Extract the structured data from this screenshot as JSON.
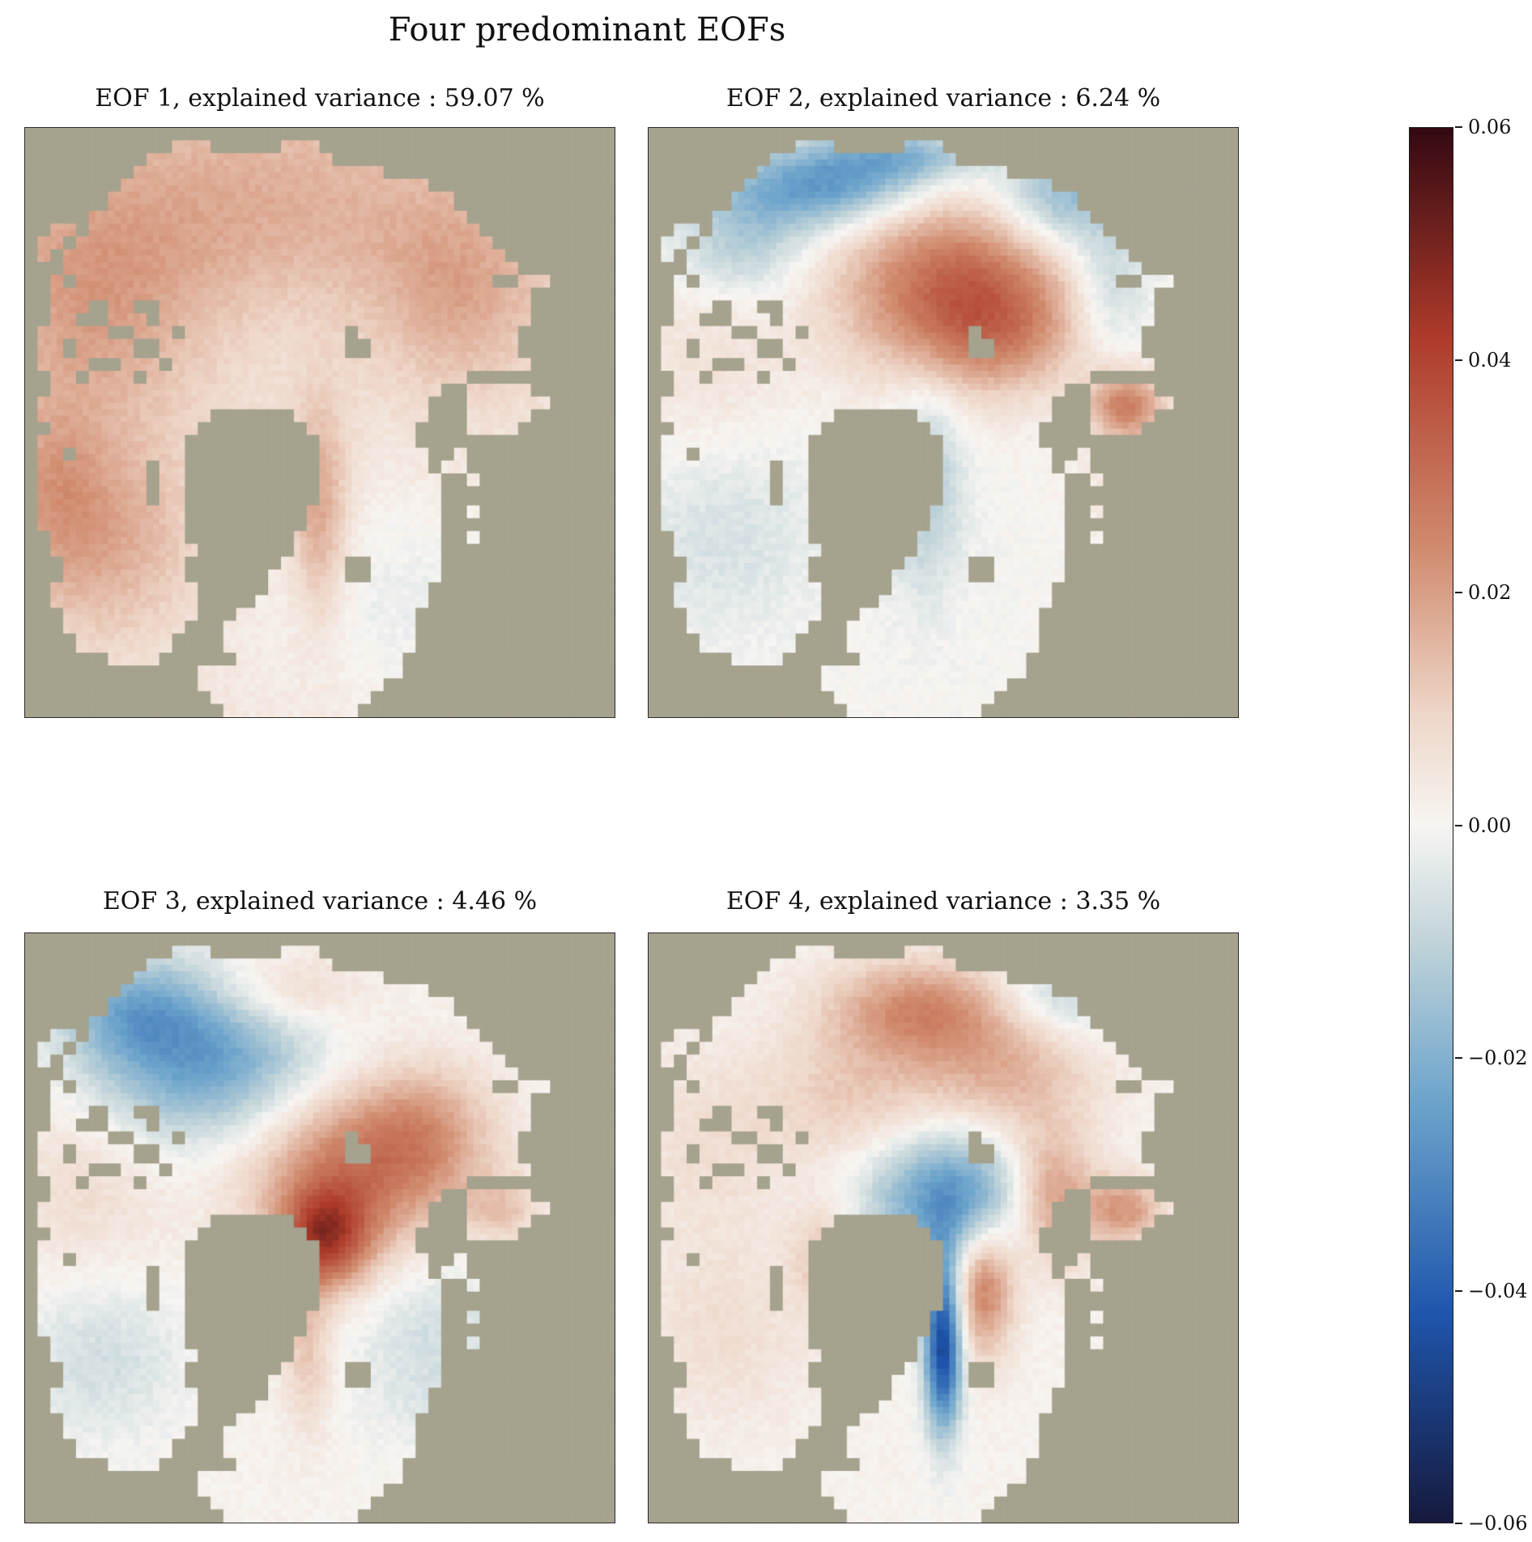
{
  "figure": {
    "title": "Four predominant EOFs",
    "background": "#ffffff",
    "text_color": "#111111",
    "land_color": "#a5a28e"
  },
  "colorbar": {
    "vmin": -0.06,
    "vmax": 0.06,
    "ticks": [
      {
        "value": 0.06,
        "label": "0.06"
      },
      {
        "value": 0.04,
        "label": "0.04"
      },
      {
        "value": 0.02,
        "label": "0.02"
      },
      {
        "value": 0.0,
        "label": "0.00"
      },
      {
        "value": -0.02,
        "label": "−0.02"
      },
      {
        "value": -0.04,
        "label": "−0.04"
      },
      {
        "value": -0.06,
        "label": "−0.06"
      }
    ]
  },
  "chart_data": {
    "type": "heatmap",
    "subtype": "geographic-eof-spatial-patterns",
    "projection": "arctic-polar",
    "title": "Four predominant EOFs",
    "value_range": [
      -0.06,
      0.06
    ],
    "colormap": "diverging dark-navy / blue / white / red / dark-maroon (balance-like)",
    "colormap_stops": [
      [
        0.0,
        "#161a3e"
      ],
      [
        0.15,
        "#1f56ad"
      ],
      [
        0.3,
        "#6ba3cb"
      ],
      [
        0.42,
        "#c3d5da"
      ],
      [
        0.5,
        "#f7f5f2"
      ],
      [
        0.58,
        "#eed6c8"
      ],
      [
        0.7,
        "#d08a6d"
      ],
      [
        0.85,
        "#ae3b2a"
      ],
      [
        1.0,
        "#340912"
      ]
    ],
    "explained_variance_percent": [
      59.07,
      6.24,
      4.46,
      3.35
    ],
    "field_model": "sum-of-gaussians approximation of each EOF spatial pattern (x,y normalized to panel, a = amplitude in data units, sx/sy = widths)",
    "panels": [
      {
        "id": "eof1",
        "title": "EOF 1, explained variance : 59.07 %",
        "explained_variance_pct": 59.07,
        "canvas": "eof1-map-canvas",
        "base": 0.005,
        "gaussians": [
          {
            "x": 0.38,
            "y": 0.16,
            "a": 0.013,
            "sx": 0.3,
            "sy": 0.18
          },
          {
            "x": 0.1,
            "y": 0.32,
            "a": 0.01,
            "sx": 0.13,
            "sy": 0.16
          },
          {
            "x": 0.13,
            "y": 0.7,
            "a": 0.013,
            "sx": 0.12,
            "sy": 0.12
          },
          {
            "x": 0.74,
            "y": 0.28,
            "a": 0.01,
            "sx": 0.1,
            "sy": 0.12
          },
          {
            "x": 0.5,
            "y": 0.66,
            "a": 0.016,
            "sx": 0.035,
            "sy": 0.13
          },
          {
            "x": 0.65,
            "y": 0.8,
            "a": -0.007,
            "sx": 0.2,
            "sy": 0.15
          },
          {
            "x": 0.45,
            "y": 0.33,
            "a": -0.004,
            "sx": 0.14,
            "sy": 0.1
          },
          {
            "x": 0.05,
            "y": 0.6,
            "a": 0.008,
            "sx": 0.06,
            "sy": 0.1
          }
        ]
      },
      {
        "id": "eof2",
        "title": "EOF 2, explained variance : 6.24 %",
        "explained_variance_pct": 6.24,
        "canvas": "eof2-map-canvas",
        "base": 0.0,
        "gaussians": [
          {
            "x": 0.52,
            "y": 0.27,
            "a": 0.031,
            "sx": 0.14,
            "sy": 0.11
          },
          {
            "x": 0.6,
            "y": 0.35,
            "a": 0.012,
            "sx": 0.1,
            "sy": 0.07
          },
          {
            "x": 0.81,
            "y": 0.47,
            "a": 0.024,
            "sx": 0.045,
            "sy": 0.04
          },
          {
            "x": 0.3,
            "y": 0.1,
            "a": -0.026,
            "sx": 0.11,
            "sy": 0.05
          },
          {
            "x": 0.16,
            "y": 0.19,
            "a": -0.013,
            "sx": 0.08,
            "sy": 0.07
          },
          {
            "x": 0.44,
            "y": 0.05,
            "a": -0.018,
            "sx": 0.09,
            "sy": 0.035
          },
          {
            "x": 0.7,
            "y": 0.12,
            "a": -0.02,
            "sx": 0.08,
            "sy": 0.06
          },
          {
            "x": 0.78,
            "y": 0.27,
            "a": -0.012,
            "sx": 0.05,
            "sy": 0.08
          },
          {
            "x": 0.47,
            "y": 0.6,
            "a": -0.013,
            "sx": 0.045,
            "sy": 0.13
          },
          {
            "x": 0.13,
            "y": 0.68,
            "a": -0.006,
            "sx": 0.12,
            "sy": 0.12
          },
          {
            "x": 0.1,
            "y": 0.4,
            "a": 0.006,
            "sx": 0.1,
            "sy": 0.12
          },
          {
            "x": 0.85,
            "y": 0.6,
            "a": 0.008,
            "sx": 0.07,
            "sy": 0.08
          }
        ]
      },
      {
        "id": "eof3",
        "title": "EOF 3, explained variance : 4.46 %",
        "explained_variance_pct": 4.46,
        "canvas": "eof3-map-canvas",
        "base": 0.001,
        "gaussians": [
          {
            "x": 0.3,
            "y": 0.21,
            "a": -0.027,
            "sx": 0.14,
            "sy": 0.1
          },
          {
            "x": 0.18,
            "y": 0.13,
            "a": -0.014,
            "sx": 0.08,
            "sy": 0.06
          },
          {
            "x": 0.44,
            "y": 0.1,
            "a": 0.012,
            "sx": 0.09,
            "sy": 0.05
          },
          {
            "x": 0.56,
            "y": 0.4,
            "a": 0.026,
            "sx": 0.13,
            "sy": 0.1
          },
          {
            "x": 0.51,
            "y": 0.52,
            "a": 0.034,
            "sx": 0.055,
            "sy": 0.06
          },
          {
            "x": 0.68,
            "y": 0.33,
            "a": 0.012,
            "sx": 0.08,
            "sy": 0.08
          },
          {
            "x": 0.1,
            "y": 0.42,
            "a": 0.007,
            "sx": 0.1,
            "sy": 0.12
          },
          {
            "x": 0.13,
            "y": 0.72,
            "a": -0.008,
            "sx": 0.1,
            "sy": 0.1
          },
          {
            "x": 0.7,
            "y": 0.7,
            "a": -0.008,
            "sx": 0.1,
            "sy": 0.12
          },
          {
            "x": 0.48,
            "y": 0.7,
            "a": 0.012,
            "sx": 0.03,
            "sy": 0.1
          },
          {
            "x": 0.81,
            "y": 0.47,
            "a": 0.01,
            "sx": 0.045,
            "sy": 0.04
          }
        ]
      },
      {
        "id": "eof4",
        "title": "EOF 4, explained variance : 3.35 %",
        "explained_variance_pct": 3.35,
        "canvas": "eof4-map-canvas",
        "base": 0.001,
        "gaussians": [
          {
            "x": 0.46,
            "y": 0.13,
            "a": 0.022,
            "sx": 0.11,
            "sy": 0.06
          },
          {
            "x": 0.6,
            "y": 0.24,
            "a": 0.015,
            "sx": 0.11,
            "sy": 0.08
          },
          {
            "x": 0.34,
            "y": 0.28,
            "a": 0.01,
            "sx": 0.1,
            "sy": 0.08
          },
          {
            "x": 0.52,
            "y": 0.45,
            "a": -0.03,
            "sx": 0.1,
            "sy": 0.08
          },
          {
            "x": 0.5,
            "y": 0.7,
            "a": -0.048,
            "sx": 0.022,
            "sy": 0.1
          },
          {
            "x": 0.68,
            "y": 0.45,
            "a": 0.024,
            "sx": 0.055,
            "sy": 0.08
          },
          {
            "x": 0.57,
            "y": 0.6,
            "a": 0.026,
            "sx": 0.035,
            "sy": 0.08
          },
          {
            "x": 0.81,
            "y": 0.47,
            "a": 0.02,
            "sx": 0.045,
            "sy": 0.04
          },
          {
            "x": 0.13,
            "y": 0.68,
            "a": 0.006,
            "sx": 0.11,
            "sy": 0.11
          },
          {
            "x": 0.1,
            "y": 0.36,
            "a": 0.006,
            "sx": 0.1,
            "sy": 0.12
          },
          {
            "x": 0.7,
            "y": 0.11,
            "a": -0.012,
            "sx": 0.08,
            "sy": 0.05
          },
          {
            "x": 0.3,
            "y": 0.55,
            "a": 0.012,
            "sx": 0.04,
            "sy": 0.06
          }
        ]
      }
    ],
    "land_mask": [
      "############################################",
      "###########...#####...######################",
      "#########..............#####################",
      "########...................#################",
      "#######.......................##############",
      "######..........................############",
      "#####............................###########",
      "##..#.............................##########",
      "#..#...............................#########",
      "#.#.................................########",
      "###..................................#######",
      "##.#...............................##..#####",
      "##....................................######",
      "##...#..##............................######",
      "##..##...#............................######",
      "#.....##...#............#............#######",
      "#..#....##..............##...........#######",
      "#....##...#...........................######",
      "##..#...#........................###########",
      "##.............................##.....######",
      "#.............................###......#####",
      "#.............######..........###.....######",
      "##...........########........####....#######",
      "#...........##########.......###############",
      "#..#........##########........##.###########",
      "#........#..##########........#..###########",
      "#........#..##########.........##.##########",
      "#........#..##########.........#############",
      "#...........#########..........##.##########",
      "#...........#########..........#############",
      "##..........########...........##.##########",
      "##...........#######...........#############",
      "###.........#######.....##.....#############",
      "###.........######......##.....#############",
      "##...........#####............##############",
      "##...........####.............##############",
      "###..........###.............###############",
      "###.........###..............###############",
      "####.......####..............###############",
      "######....######............################",
      "#############...............################",
      "#############..............#################",
      "##############............##################",
      "###############..........###################"
    ]
  }
}
